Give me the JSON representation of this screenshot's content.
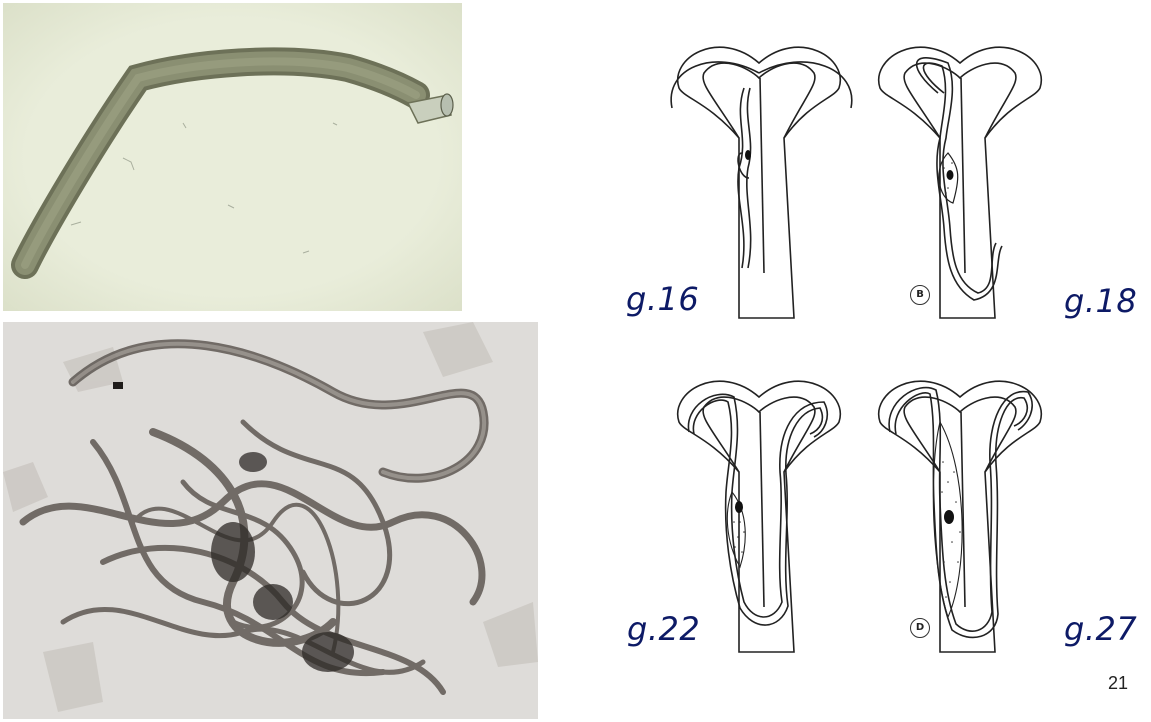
{
  "stage_labels": {
    "a": "g.16",
    "b": "g.18",
    "c": "g.22",
    "d": "g.27"
  },
  "panel_markers": {
    "b": "B",
    "d": "D"
  },
  "page_number": "21",
  "colors": {
    "label_color": "#0d1a66",
    "top_photo_background": "#e6ead7",
    "bottom_photo_background": "#dddbd8"
  }
}
